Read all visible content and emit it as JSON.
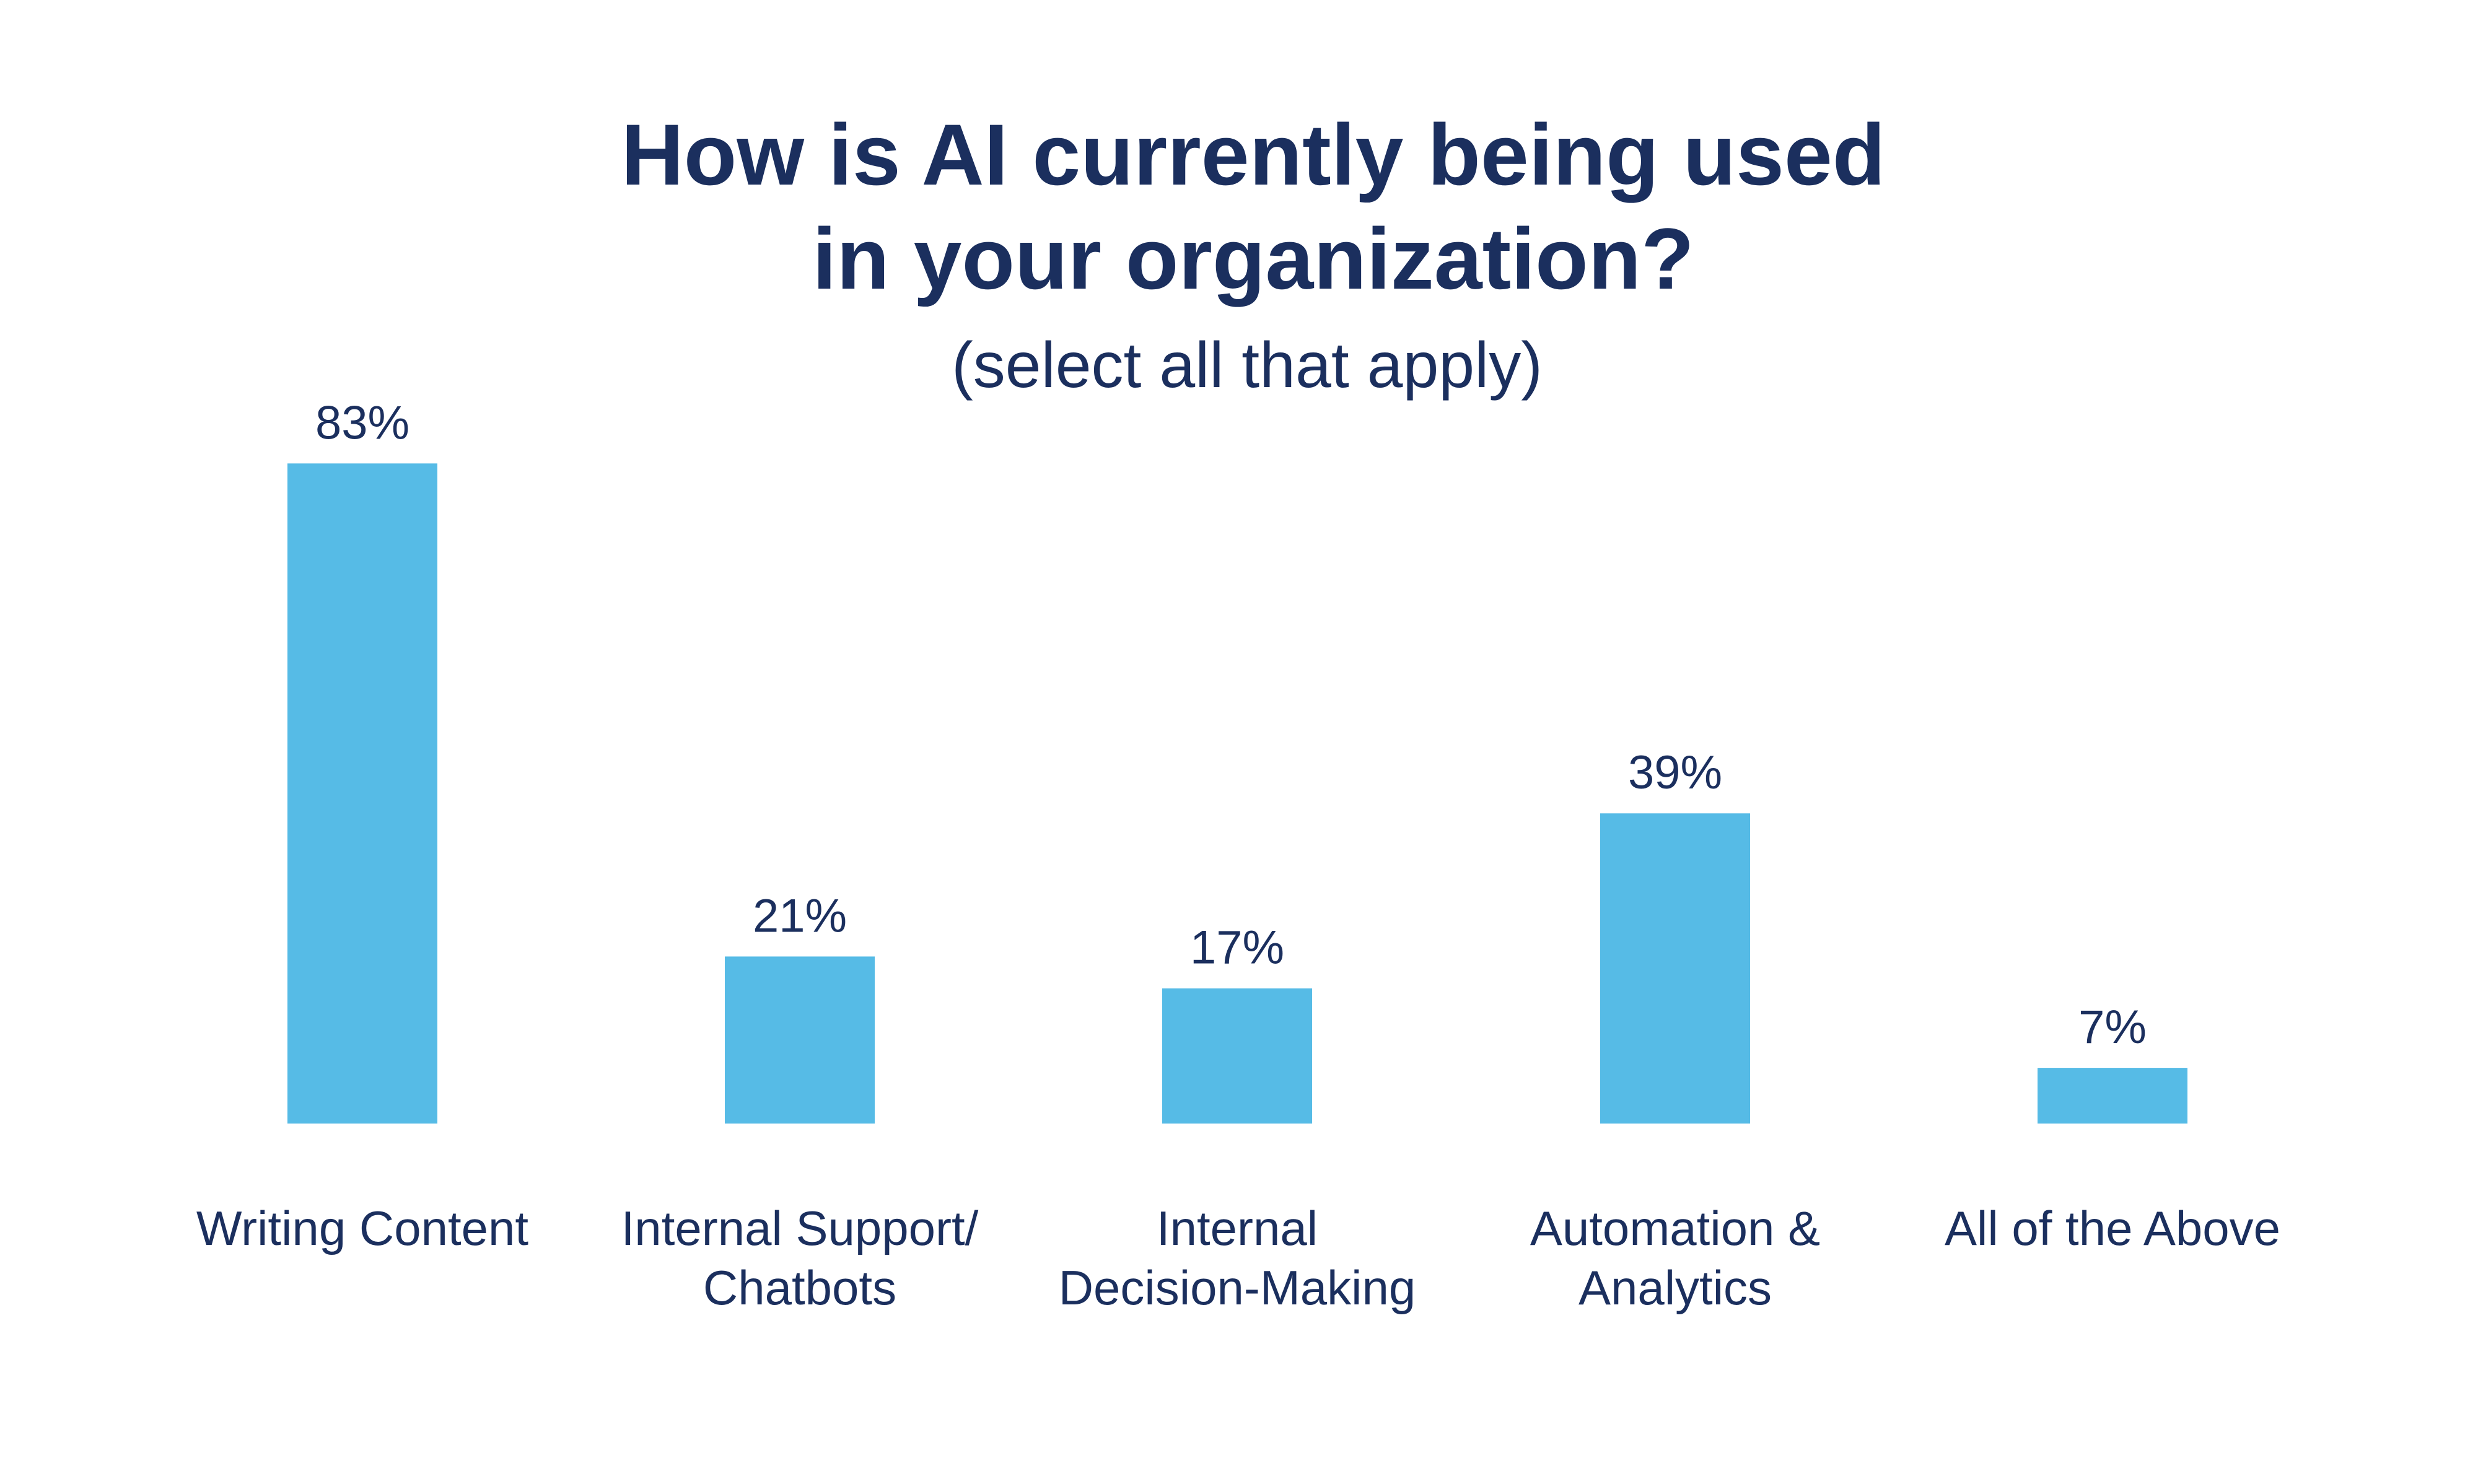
{
  "chart_data": {
    "type": "bar",
    "title_lines": [
      "How is AI currently being used",
      "in your organization?"
    ],
    "subtitle": "(select all that apply)",
    "categories": [
      [
        "Writing Content"
      ],
      [
        "Internal Support/",
        "Chatbots"
      ],
      [
        "Internal",
        "Decision-Making"
      ],
      [
        "Automation &",
        "Analytics"
      ],
      [
        "All of the Above"
      ]
    ],
    "values": [
      83,
      21,
      17,
      39,
      7
    ],
    "value_labels": [
      "83%",
      "21%",
      "17%",
      "39%",
      "7%"
    ],
    "xlabel": "",
    "ylabel": "",
    "ylim": [
      0,
      100
    ],
    "grid": false,
    "legend": "none"
  },
  "colors": {
    "bar": "#56bbe6",
    "text": "#1b2f5e",
    "background": "#ffffff"
  }
}
